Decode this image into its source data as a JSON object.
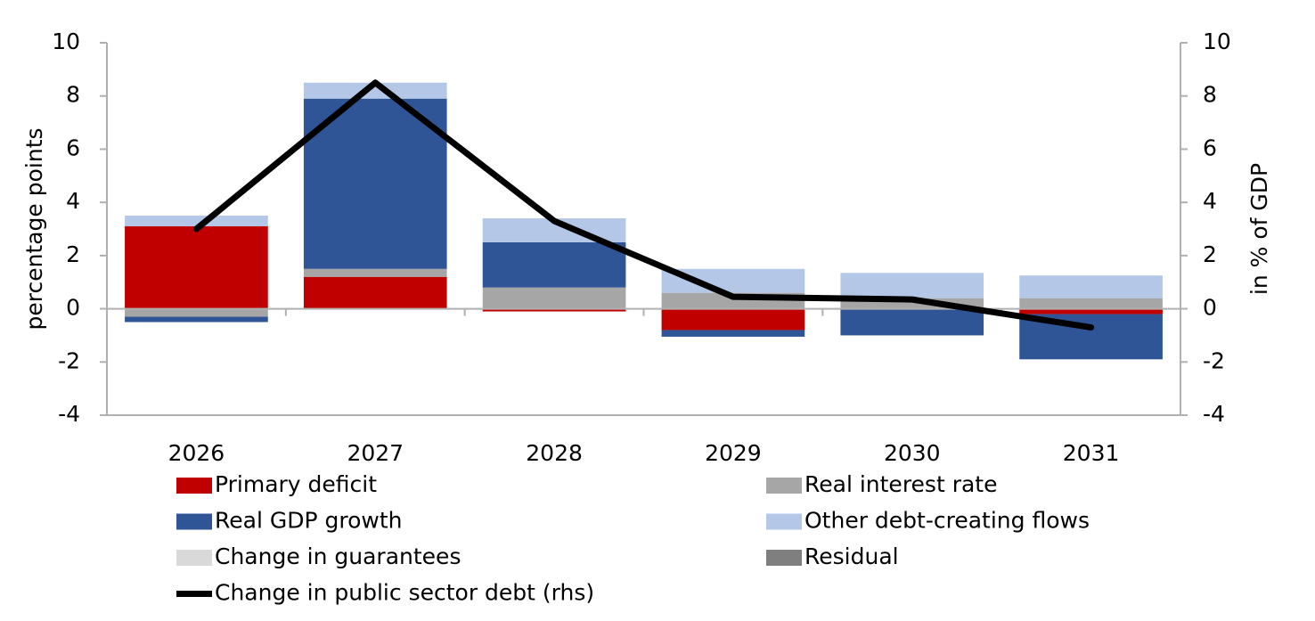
{
  "chart_data": {
    "type": "bar",
    "stacked": true,
    "categories": [
      "2026",
      "2027",
      "2028",
      "2029",
      "2030",
      "2031"
    ],
    "series": [
      {
        "name": "Primary deficit",
        "color": "#c00000",
        "values": [
          3.1,
          1.2,
          -0.1,
          -0.8,
          0,
          -0.2
        ]
      },
      {
        "name": "Real interest rate",
        "color": "#a6a6a6",
        "values": [
          -0.3,
          0.3,
          0.8,
          0.6,
          0.4,
          0.4
        ]
      },
      {
        "name": "Real GDP growth",
        "color": "#2f5597",
        "values": [
          -0.2,
          6.4,
          1.7,
          -0.25,
          -1.0,
          -1.7
        ]
      },
      {
        "name": "Other debt-creating flows",
        "color": "#b4c7e7",
        "values": [
          0.4,
          0.6,
          0.9,
          0.9,
          0.95,
          0.85
        ]
      },
      {
        "name": "Change in guarantees",
        "color": "#d9d9d9",
        "values": [
          0,
          0,
          0,
          0,
          0,
          0
        ]
      },
      {
        "name": "Residual",
        "color": "#7f7f7f",
        "values": [
          0,
          0,
          0,
          0,
          0,
          0
        ]
      },
      {
        "name": "Change in public sector debt (rhs)",
        "color": "#000000",
        "type": "line",
        "axis": "y2",
        "values": [
          3.0,
          8.5,
          3.3,
          0.45,
          0.35,
          -0.7
        ]
      }
    ],
    "y_label": "percentage points",
    "y2_label": "in % of GDP",
    "ylim": [
      -4,
      10
    ],
    "yticks": [
      -4,
      -2,
      0,
      2,
      4,
      6,
      8,
      10
    ],
    "y2lim": [
      -4,
      10
    ],
    "y2ticks": [
      -4,
      -2,
      0,
      2,
      4,
      6,
      8,
      10
    ]
  }
}
